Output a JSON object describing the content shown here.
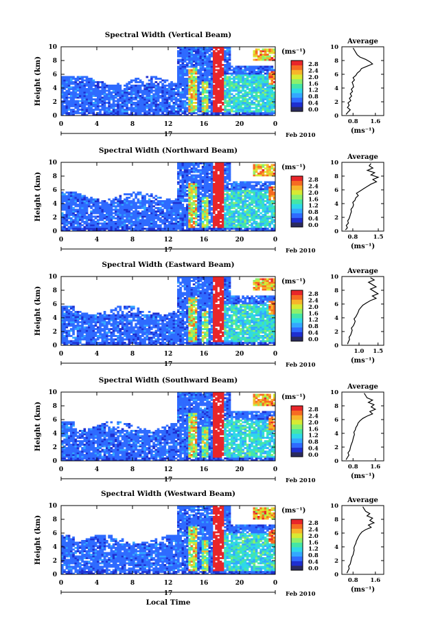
{
  "figure": {
    "xlabel": "Local Time",
    "ylabel": "Height (km)",
    "date_label": "Feb 2010",
    "day_label": "17",
    "unit_label": "(ms⁻¹)",
    "average_title": "Average",
    "colorbar_ticks": [
      "2.8",
      "2.4",
      "2.0",
      "1.6",
      "1.2",
      "0.8",
      "0.4",
      "0.0"
    ],
    "colormap": [
      "#2b2b5e",
      "#1f2fd0",
      "#2f6bff",
      "#33a8ff",
      "#2fd8e8",
      "#45e6a6",
      "#8ef06a",
      "#d8ea33",
      "#f7b42a",
      "#f66b22",
      "#e8262a"
    ]
  },
  "chart_data": [
    {
      "type": "heatmap",
      "title": "Spectral Width (Vertical Beam)",
      "x_ticks": [
        "0",
        "4",
        "8",
        "12",
        "16",
        "20",
        "0"
      ],
      "y_ticks": [
        "0",
        "2",
        "4",
        "6",
        "8",
        "10"
      ],
      "xlim": [
        0,
        24
      ],
      "ylim": [
        0,
        10
      ],
      "clim": [
        0,
        3.0
      ],
      "avg_ticks": [
        "0.8",
        "1.6"
      ],
      "avg_xlim": [
        0.4,
        1.9
      ],
      "avg_profile": [
        0.55,
        0.62,
        0.7,
        0.6,
        0.66,
        0.62,
        0.72,
        0.67,
        0.75,
        0.7,
        0.78,
        0.74,
        0.82,
        0.8,
        0.77,
        0.85,
        0.8,
        0.9,
        0.95,
        1.05,
        1.1,
        1.3,
        1.5,
        1.4,
        1.25,
        1.05,
        0.95,
        0.9,
        0.85,
        0.8
      ]
    },
    {
      "type": "heatmap",
      "title": "Spectral Width (Northward Beam)",
      "x_ticks": [
        "0",
        "4",
        "8",
        "12",
        "16",
        "20",
        "0"
      ],
      "y_ticks": [
        "0",
        "2",
        "4",
        "6",
        "8",
        "10"
      ],
      "xlim": [
        0,
        24
      ],
      "ylim": [
        0,
        10
      ],
      "clim": [
        0,
        3.0
      ],
      "avg_ticks": [
        "0.8",
        "1.5"
      ],
      "avg_xlim": [
        0.5,
        1.65
      ],
      "avg_profile": [
        0.6,
        0.65,
        0.62,
        0.68,
        0.66,
        0.7,
        0.72,
        0.74,
        0.76,
        0.75,
        0.8,
        0.82,
        0.8,
        0.86,
        0.88,
        0.95,
        0.9,
        1.0,
        1.1,
        1.2,
        1.3,
        1.45,
        1.35,
        1.5,
        1.3,
        1.4,
        1.2,
        1.35,
        1.25,
        1.3
      ]
    },
    {
      "type": "heatmap",
      "title": "Spectral Width (Eastward Beam)",
      "x_ticks": [
        "0",
        "4",
        "8",
        "12",
        "16",
        "20",
        "0"
      ],
      "y_ticks": [
        "0",
        "2",
        "4",
        "6",
        "8",
        "10"
      ],
      "xlim": [
        0,
        24
      ],
      "ylim": [
        0,
        10
      ],
      "clim": [
        0,
        3.0
      ],
      "avg_ticks": [
        "1.0",
        "1.5"
      ],
      "avg_xlim": [
        0.55,
        1.65
      ],
      "avg_profile": [
        0.7,
        0.72,
        0.75,
        0.74,
        0.78,
        0.8,
        0.82,
        0.8,
        0.85,
        0.88,
        0.9,
        0.87,
        0.92,
        0.95,
        0.98,
        1.0,
        1.05,
        1.1,
        1.2,
        1.3,
        1.45,
        1.35,
        1.5,
        1.4,
        1.3,
        1.45,
        1.35,
        1.25,
        1.4,
        1.3
      ]
    },
    {
      "type": "heatmap",
      "title": "Spectral Width (Southward Beam)",
      "x_ticks": [
        "0",
        "4",
        "8",
        "12",
        "16",
        "20",
        "0"
      ],
      "y_ticks": [
        "0",
        "2",
        "4",
        "6",
        "8",
        "10"
      ],
      "xlim": [
        0,
        24
      ],
      "ylim": [
        0,
        10
      ],
      "clim": [
        0,
        3.0
      ],
      "avg_ticks": [
        "0.8",
        "1.6"
      ],
      "avg_xlim": [
        0.4,
        1.9
      ],
      "avg_profile": [
        0.55,
        0.6,
        0.65,
        0.62,
        0.68,
        0.7,
        0.72,
        0.75,
        0.78,
        0.8,
        0.82,
        0.85,
        0.83,
        0.88,
        0.9,
        0.95,
        0.98,
        1.05,
        1.15,
        1.3,
        1.5,
        1.4,
        1.6,
        1.45,
        1.55,
        1.35,
        1.5,
        1.3,
        1.25,
        1.2
      ]
    },
    {
      "type": "heatmap",
      "title": "Spectral Width (Westward Beam)",
      "x_ticks": [
        "0",
        "4",
        "8",
        "12",
        "16",
        "20",
        "0"
      ],
      "y_ticks": [
        "0",
        "2",
        "4",
        "6",
        "8",
        "10"
      ],
      "xlim": [
        0,
        24
      ],
      "ylim": [
        0,
        10
      ],
      "clim": [
        0,
        3.0
      ],
      "avg_ticks": [
        "0.8",
        "1.6"
      ],
      "avg_xlim": [
        0.4,
        1.9
      ],
      "avg_profile": [
        0.58,
        0.62,
        0.66,
        0.64,
        0.7,
        0.72,
        0.74,
        0.76,
        0.8,
        0.82,
        0.84,
        0.83,
        0.86,
        0.9,
        0.92,
        0.96,
        1.0,
        1.05,
        1.12,
        1.25,
        1.45,
        1.35,
        1.55,
        1.4,
        1.5,
        1.3,
        1.4,
        1.25,
        1.2,
        1.15
      ]
    }
  ]
}
